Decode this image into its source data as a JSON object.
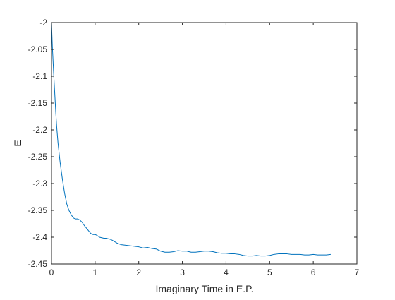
{
  "chart_data": {
    "type": "line",
    "title": "",
    "xlabel": "Imaginary Time in E.P.",
    "ylabel": "E",
    "xlim": [
      0,
      7
    ],
    "ylim": [
      -2.45,
      -2
    ],
    "x_ticks": [
      "0",
      "1",
      "2",
      "3",
      "4",
      "5",
      "6",
      "7"
    ],
    "y_ticks": [
      "-2",
      "-2.05",
      "-2.1",
      "-2.15",
      "-2.2",
      "-2.25",
      "-2.3",
      "-2.35",
      "-2.4",
      "-2.45"
    ],
    "grid": false,
    "legend": "none",
    "series": [
      {
        "color": "#0072bd",
        "x": [
          0,
          0.02,
          0.05,
          0.08,
          0.1,
          0.12,
          0.15,
          0.2,
          0.25,
          0.3,
          0.35,
          0.4,
          0.45,
          0.5,
          0.55,
          0.6,
          0.65,
          0.7,
          0.75,
          0.8,
          0.85,
          0.9,
          0.95,
          1.0,
          1.05,
          1.1,
          1.15,
          1.2,
          1.25,
          1.3,
          1.35,
          1.4,
          1.5,
          1.6,
          1.7,
          1.8,
          1.9,
          2.0,
          2.1,
          2.2,
          2.3,
          2.4,
          2.5,
          2.6,
          2.7,
          2.8,
          2.9,
          3.0,
          3.1,
          3.2,
          3.3,
          3.4,
          3.5,
          3.6,
          3.7,
          3.8,
          3.9,
          4.0,
          4.1,
          4.2,
          4.3,
          4.4,
          4.5,
          4.6,
          4.7,
          4.8,
          4.9,
          5.0,
          5.1,
          5.2,
          5.3,
          5.4,
          5.5,
          5.6,
          5.7,
          5.8,
          5.9,
          6.0,
          6.1,
          6.2,
          6.3,
          6.4
        ],
        "values": [
          -2.0,
          -2.045,
          -2.095,
          -2.14,
          -2.17,
          -2.195,
          -2.225,
          -2.262,
          -2.292,
          -2.318,
          -2.338,
          -2.35,
          -2.358,
          -2.364,
          -2.366,
          -2.366,
          -2.368,
          -2.372,
          -2.378,
          -2.383,
          -2.388,
          -2.393,
          -2.395,
          -2.395,
          -2.397,
          -2.4,
          -2.401,
          -2.402,
          -2.402,
          -2.403,
          -2.404,
          -2.406,
          -2.411,
          -2.414,
          -2.415,
          -2.416,
          -2.417,
          -2.418,
          -2.42,
          -2.419,
          -2.421,
          -2.422,
          -2.426,
          -2.428,
          -2.428,
          -2.427,
          -2.425,
          -2.426,
          -2.426,
          -2.428,
          -2.428,
          -2.427,
          -2.426,
          -2.426,
          -2.427,
          -2.429,
          -2.43,
          -2.43,
          -2.431,
          -2.431,
          -2.432,
          -2.434,
          -2.435,
          -2.435,
          -2.434,
          -2.435,
          -2.435,
          -2.434,
          -2.432,
          -2.431,
          -2.431,
          -2.431,
          -2.432,
          -2.432,
          -2.432,
          -2.433,
          -2.433,
          -2.432,
          -2.433,
          -2.433,
          -2.433,
          -2.432
        ]
      }
    ]
  }
}
